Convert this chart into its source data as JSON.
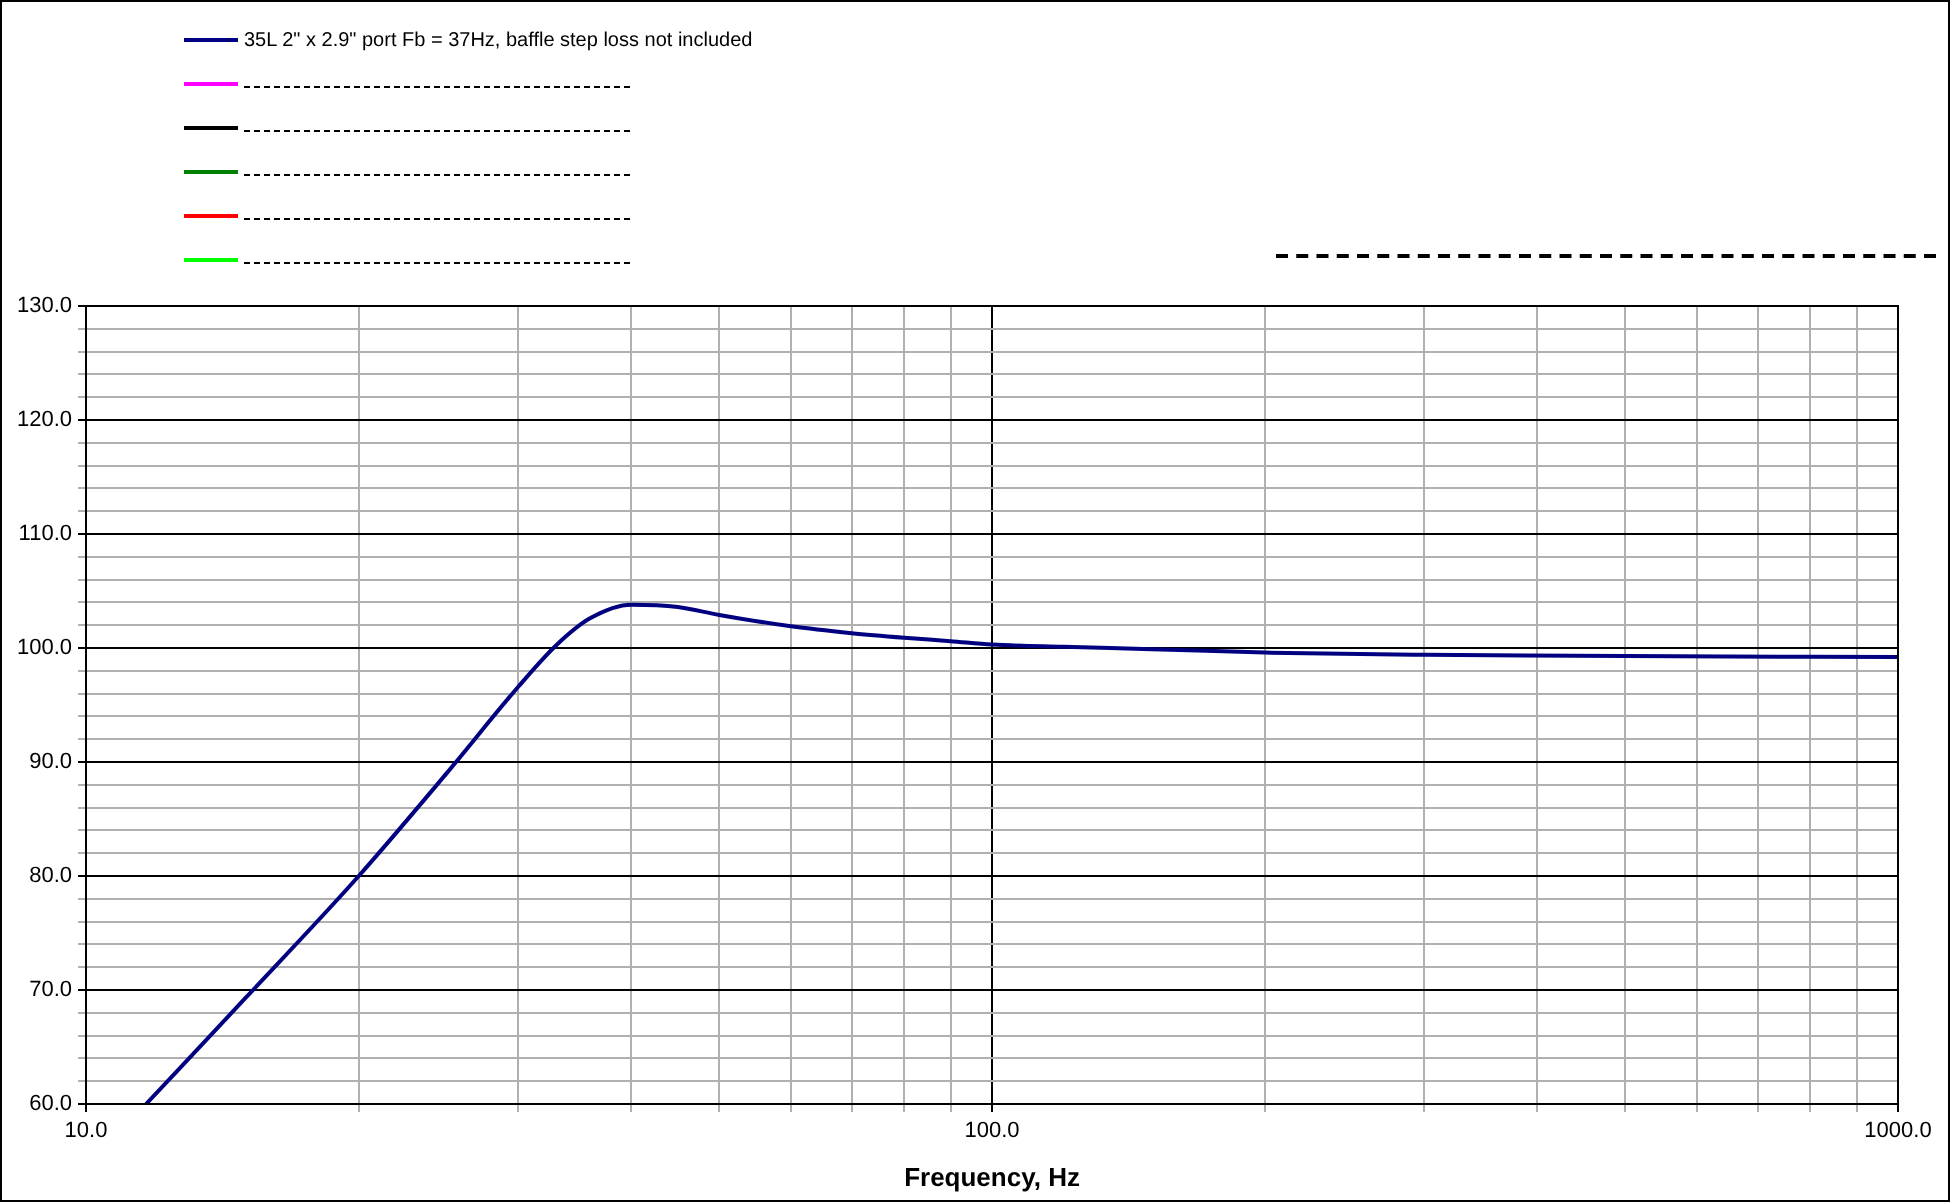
{
  "chart_data": {
    "type": "line",
    "xlabel": "Frequency, Hz",
    "log": "x",
    "legend": "top left",
    "grid": true,
    "marker": "none",
    "line_style": "solid",
    "xlim": [
      10,
      1000
    ],
    "xticks": [
      {
        "value": 10,
        "label": "10.0"
      },
      {
        "value": 20,
        "label": null
      },
      {
        "value": 30,
        "label": null
      },
      {
        "value": 40,
        "label": null
      },
      {
        "value": 50,
        "label": null
      },
      {
        "value": 60,
        "label": null
      },
      {
        "value": 70,
        "label": null
      },
      {
        "value": 80,
        "label": null
      },
      {
        "value": 90,
        "label": null
      },
      {
        "value": 100,
        "label": "100.0"
      },
      {
        "value": 200,
        "label": null
      },
      {
        "value": 300,
        "label": null
      },
      {
        "value": 400,
        "label": null
      },
      {
        "value": 500,
        "label": null
      },
      {
        "value": 600,
        "label": null
      },
      {
        "value": 700,
        "label": null
      },
      {
        "value": 800,
        "label": null
      },
      {
        "value": 900,
        "label": null
      },
      {
        "value": 1000,
        "label": "1000.0"
      }
    ],
    "ylim": [
      60,
      130
    ],
    "yticks": [
      {
        "value": 60,
        "label": "60.0"
      },
      {
        "value": 62,
        "label": null
      },
      {
        "value": 64,
        "label": null
      },
      {
        "value": 66,
        "label": null
      },
      {
        "value": 68,
        "label": null
      },
      {
        "value": 70,
        "label": "70.0"
      },
      {
        "value": 72,
        "label": null
      },
      {
        "value": 74,
        "label": null
      },
      {
        "value": 76,
        "label": null
      },
      {
        "value": 78,
        "label": null
      },
      {
        "value": 80,
        "label": "80.0"
      },
      {
        "value": 82,
        "label": null
      },
      {
        "value": 84,
        "label": null
      },
      {
        "value": 86,
        "label": null
      },
      {
        "value": 88,
        "label": null
      },
      {
        "value": 90,
        "label": "90.0"
      },
      {
        "value": 92,
        "label": null
      },
      {
        "value": 94,
        "label": null
      },
      {
        "value": 96,
        "label": null
      },
      {
        "value": 98,
        "label": null
      },
      {
        "value": 100,
        "label": "100.0"
      },
      {
        "value": 102,
        "label": null
      },
      {
        "value": 104,
        "label": null
      },
      {
        "value": 106,
        "label": null
      },
      {
        "value": 108,
        "label": null
      },
      {
        "value": 110,
        "label": "110.0"
      },
      {
        "value": 112,
        "label": null
      },
      {
        "value": 114,
        "label": null
      },
      {
        "value": 116,
        "label": null
      },
      {
        "value": 118,
        "label": null
      },
      {
        "value": 120,
        "label": "120.0"
      },
      {
        "value": 122,
        "label": null
      },
      {
        "value": 124,
        "label": null
      },
      {
        "value": 126,
        "label": null
      },
      {
        "value": 128,
        "label": null
      },
      {
        "value": 130,
        "label": "130.0"
      }
    ],
    "x": [
      11.65,
      15,
      20,
      25,
      30,
      33,
      36,
      40,
      45,
      50,
      60,
      70,
      80,
      90,
      100,
      120,
      150,
      200,
      300,
      500,
      1000
    ],
    "series": [
      {
        "name": "35L 2\" x 2.9\" port  Fb = 37Hz, baffle step loss not included",
        "color": "#000080",
        "values": [
          60,
          69.3,
          80,
          89,
          96.6,
          100.2,
          102.6,
          103.8,
          103.6,
          102.9,
          101.9,
          101.3,
          100.9,
          100.6,
          100.3,
          100.1,
          99.9,
          99.6,
          99.4,
          99.3,
          99.2
        ]
      }
    ]
  }
}
